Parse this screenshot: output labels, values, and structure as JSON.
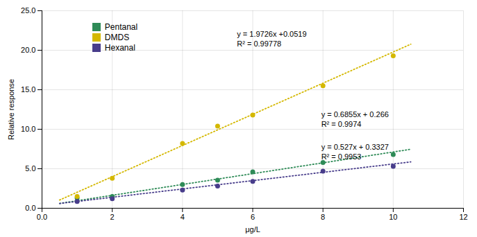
{
  "chart_data": {
    "type": "scatter",
    "xlabel": "μg/L",
    "ylabel": "Relative response",
    "series": [
      {
        "name": "Pentanal",
        "color": "#2e8b57",
        "marker": "circle",
        "x": [
          1,
          2,
          4,
          5,
          6,
          8,
          10
        ],
        "values": [
          1.3,
          1.5,
          3.0,
          3.55,
          4.6,
          5.8,
          6.8
        ],
        "trendline": {
          "x": [
            0.5,
            10.5
          ],
          "values": [
            0.60875,
            7.46375
          ],
          "line_style": "dotted"
        }
      },
      {
        "name": "DMDS",
        "color": "#d4b800",
        "marker": "circle",
        "x": [
          1,
          2,
          4,
          5,
          6,
          8,
          10
        ],
        "values": [
          1.5,
          3.8,
          8.2,
          10.4,
          11.8,
          15.5,
          19.3
        ],
        "trendline": {
          "x": [
            0.5,
            10.5
          ],
          "values": [
            1.0382,
            20.7642
          ],
          "line_style": "dotted"
        }
      },
      {
        "name": "Hexanal",
        "color": "#483d8b",
        "marker": "circle",
        "x": [
          1,
          2,
          4,
          5,
          6,
          8,
          10
        ],
        "values": [
          0.85,
          1.2,
          2.3,
          2.8,
          3.4,
          4.7,
          5.3
        ],
        "trendline": {
          "x": [
            0.5,
            10.5
          ],
          "values": [
            0.5962,
            5.8662
          ],
          "line_style": "dotted"
        }
      }
    ],
    "annotations": [
      {
        "text": "y = 1.9726x +0.0519\nR² = 0.99778",
        "x": 5.55,
        "y": 20.5
      },
      {
        "text": "y = 0.6855x + 0.266\nR² = 0.9974",
        "x": 7.95,
        "y": 10.3
      },
      {
        "text": "y = 0.527x + 0.3327\nR² = 0.9953",
        "x": 7.95,
        "y": 6.15
      }
    ],
    "xlim": [
      0.0,
      12.0
    ],
    "ylim": [
      0.0,
      25.0
    ],
    "xticks": [
      {
        "value": 0,
        "label": "0.0"
      },
      2,
      4,
      6,
      8,
      10,
      12
    ],
    "yticks": [
      {
        "value": 0,
        "label": "0.0"
      },
      {
        "value": 5,
        "label": "5.0"
      },
      {
        "value": 10,
        "label": "10.0"
      },
      {
        "value": 15,
        "label": "15.0"
      },
      {
        "value": 20,
        "label": "20.0"
      },
      {
        "value": 25,
        "label": "25.0"
      }
    ],
    "grid": true,
    "legend": "upper left"
  }
}
